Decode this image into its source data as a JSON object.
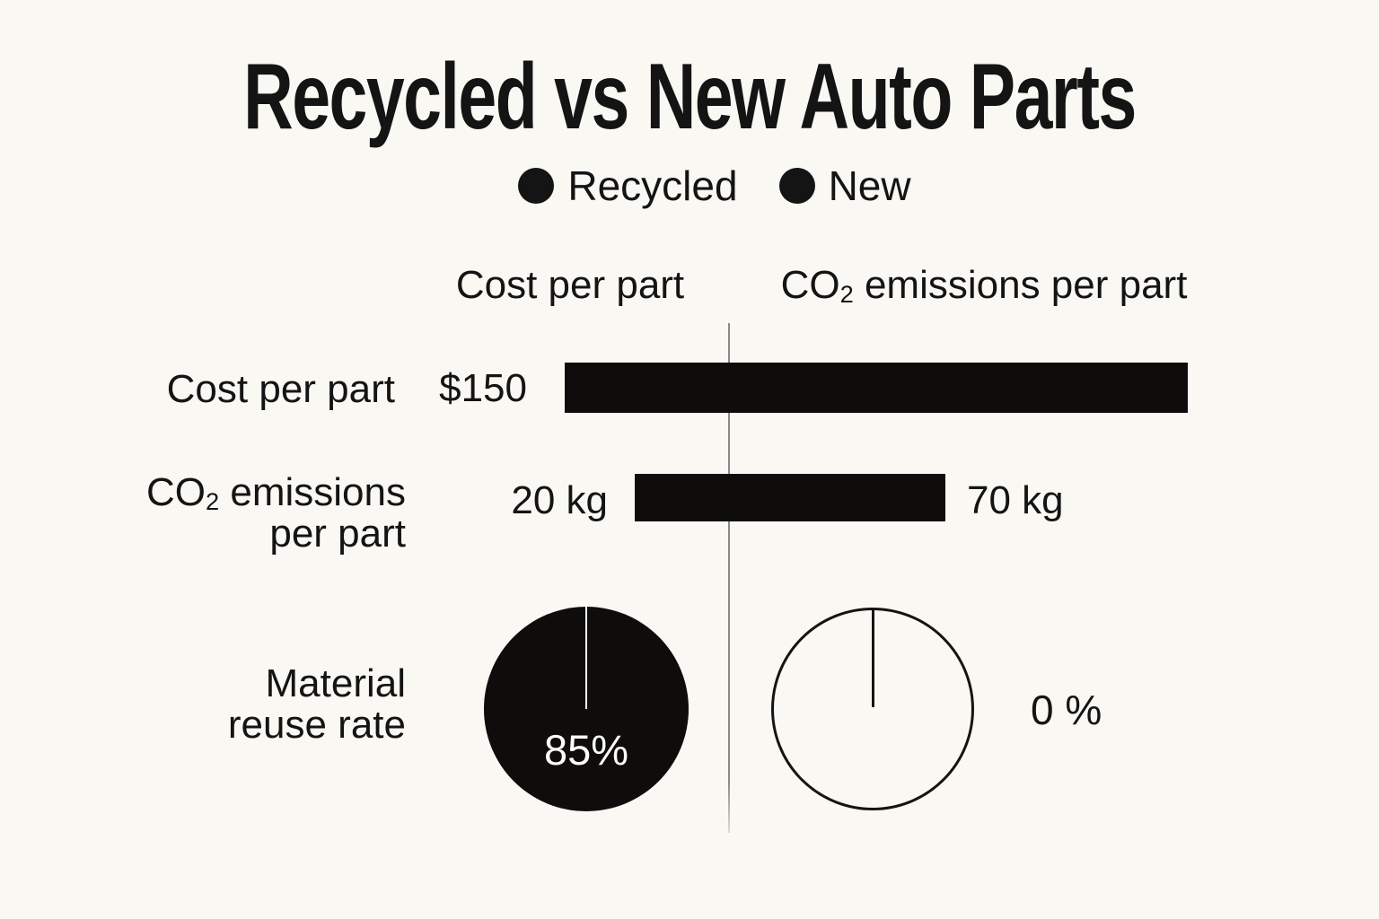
{
  "title": "Recycled vs New Auto Parts",
  "colors": {
    "background": "#faf8f3",
    "ink": "#141414",
    "bar": "#0e0d0c",
    "divider": "#8a8a8a",
    "pie_value_text": "#fdfcf8"
  },
  "legend": {
    "recycled_label": "Recycled",
    "new_label": "New",
    "marker": "filled-black-dot"
  },
  "display": {
    "co2_label": {
      "prefix": "CO",
      "sub": "2",
      "suffix_header": " emissions per part",
      "suffix_row": " emissions",
      "row_line2": "per part"
    },
    "reuse_label": {
      "line1": "Material",
      "line2": "reuse rate"
    }
  },
  "chart_data": {
    "type": "table",
    "title": "Recycled vs New Auto Parts",
    "legend_entries": [
      "Recycled",
      "New"
    ],
    "column_headers": [
      "Cost per part",
      "CO2 emissions per part"
    ],
    "metrics": [
      {
        "name": "Cost per part",
        "unit": "USD",
        "value": 150,
        "value_label": "$150",
        "visual": "bar",
        "note": "single black bar spanning both columns"
      },
      {
        "name": "CO2 emissions per part",
        "unit": "kg",
        "recycled": 20,
        "new": 70,
        "recycled_label": "20 kg",
        "new_label": "70 kg",
        "visual": "bar",
        "note": "single black bar crossing divider, labels on each side"
      },
      {
        "name": "Material reuse rate",
        "unit": "percent",
        "recycled": 85,
        "new": 0,
        "recycled_label": "85%",
        "new_label": "0 %",
        "visual": "pie",
        "note": "recycled pie filled black with white top slit; new pie empty outline with black top needle"
      }
    ],
    "layout_hints": {
      "legend_position": "top-center",
      "columns_divided_by_vertical_line": true,
      "grid": false
    }
  }
}
